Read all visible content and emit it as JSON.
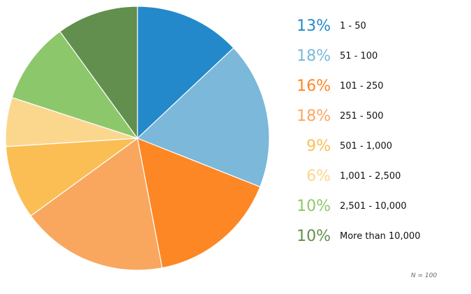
{
  "chart_data": {
    "type": "pie",
    "categories": [
      "1 - 50",
      "51 - 100",
      "101 - 250",
      "251 - 500",
      "501 - 1,000",
      "1,001 - 2,500",
      "2,501 - 10,000",
      "More than 10,000"
    ],
    "values": [
      13,
      18,
      16,
      18,
      9,
      6,
      10,
      10
    ],
    "value_labels": [
      "13%",
      "18%",
      "16%",
      "18%",
      "9%",
      "6%",
      "10%",
      "10%"
    ],
    "colors": [
      "#2389CB",
      "#7BB8DA",
      "#FD8725",
      "#F9A75F",
      "#FBBE55",
      "#FBD78E",
      "#8DC76B",
      "#628F4E"
    ],
    "legend_position": "right",
    "note": "N = 100"
  }
}
